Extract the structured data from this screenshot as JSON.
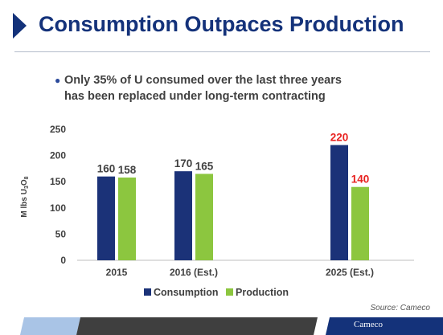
{
  "title": "Consumption Outpaces Production",
  "bullet": {
    "line1": "Only 35% of U consumed over the last three years",
    "line2": "has been replaced under long-term contracting"
  },
  "chart_data": {
    "type": "bar",
    "categories": [
      "2015",
      "2016 (Est.)",
      "2025 (Est.)"
    ],
    "series": [
      {
        "name": "Consumption",
        "values": [
          160,
          170,
          220
        ],
        "color": "#1b3278",
        "label_colors": [
          "#404040",
          "#404040",
          "#e8201e"
        ]
      },
      {
        "name": "Production",
        "values": [
          158,
          165,
          140
        ],
        "color": "#8cc63f",
        "label_colors": [
          "#404040",
          "#404040",
          "#e8201e"
        ]
      }
    ],
    "ylabel_parts": {
      "base": "M lbs U",
      "sub1": "3",
      "mid": "O",
      "sub2": "8"
    },
    "ylim": [
      0,
      250
    ],
    "yticks": [
      0,
      50,
      100,
      150,
      200,
      250
    ],
    "grid": false,
    "legend_position": "bottom"
  },
  "footer": {
    "source": "Source: Cameco",
    "logo_text": "Cameco",
    "colors": {
      "band_light": "#a9c4e6",
      "band_dark": "#3f3f3f",
      "band_navy": "#14327a"
    }
  }
}
